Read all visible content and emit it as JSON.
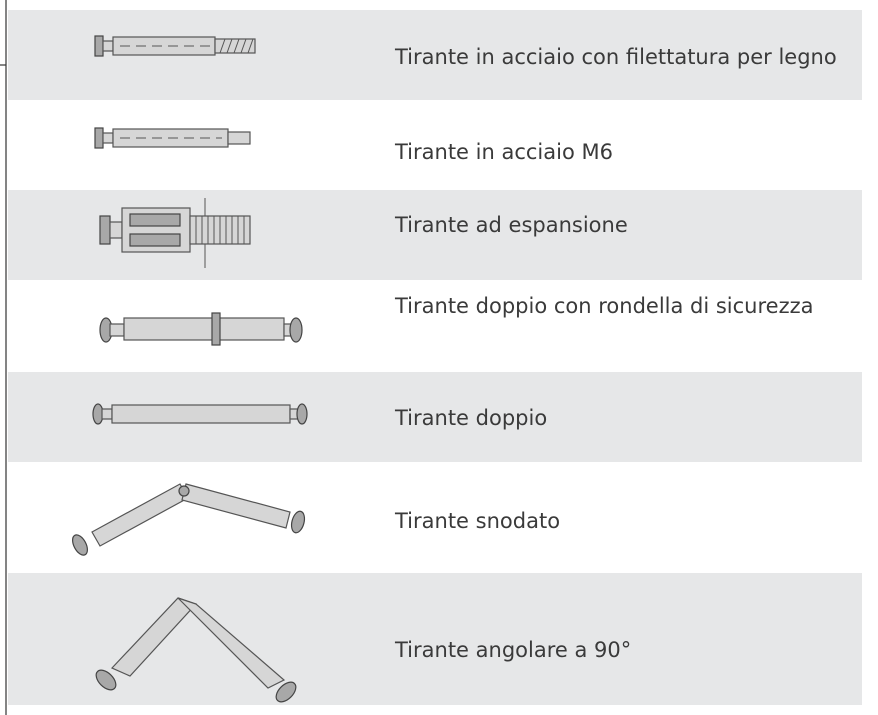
{
  "table": {
    "rows": [
      {
        "label": "Tirante in acciaio con filettatura per legno"
      },
      {
        "label": "Tirante in acciaio M6"
      },
      {
        "label": "Tirante ad espansione"
      },
      {
        "label": "Tirante doppio con rondella di sicurezza"
      },
      {
        "label": "Tirante doppio"
      },
      {
        "label": "Tirante snodato"
      },
      {
        "label": "Tirante angolare a 90°"
      }
    ]
  }
}
